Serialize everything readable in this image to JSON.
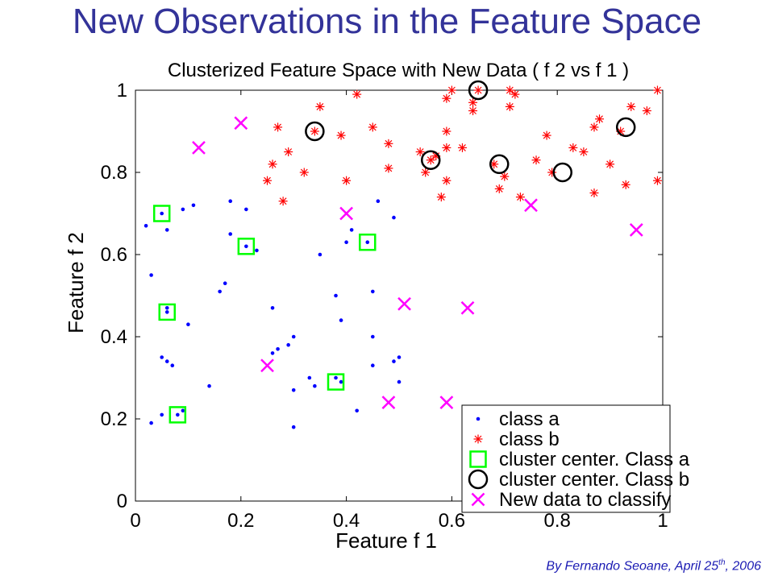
{
  "slide": {
    "title": "New Observations in the Feature Space",
    "credit_prefix": "By Fernando Seoane, April 25",
    "credit_sup": "th",
    "credit_suffix": ", 2006"
  },
  "chart_data": {
    "type": "scatter",
    "title": "Clusterized Feature Space with New Data ( f 2 vs f 1 )",
    "xlabel": "Feature f 1",
    "ylabel": "Feature f 2",
    "xlim": [
      0,
      1
    ],
    "ylim": [
      0,
      1
    ],
    "xticks": [
      "0",
      "0.2",
      "0.4",
      "0.6",
      "0.8",
      "1"
    ],
    "yticks": [
      "0",
      "0.2",
      "0.4",
      "0.6",
      "0.8",
      "1"
    ],
    "grid": false,
    "legend_position": "bottom-right",
    "series": [
      {
        "name": "class a",
        "marker": "dot",
        "color": "#0000ff",
        "points": [
          [
            0.02,
            0.67
          ],
          [
            0.03,
            0.19
          ],
          [
            0.03,
            0.55
          ],
          [
            0.05,
            0.7
          ],
          [
            0.06,
            0.66
          ],
          [
            0.05,
            0.35
          ],
          [
            0.06,
            0.34
          ],
          [
            0.06,
            0.46
          ],
          [
            0.06,
            0.47
          ],
          [
            0.07,
            0.33
          ],
          [
            0.05,
            0.21
          ],
          [
            0.08,
            0.21
          ],
          [
            0.09,
            0.22
          ],
          [
            0.09,
            0.71
          ],
          [
            0.11,
            0.72
          ],
          [
            0.1,
            0.43
          ],
          [
            0.14,
            0.28
          ],
          [
            0.16,
            0.51
          ],
          [
            0.17,
            0.53
          ],
          [
            0.18,
            0.73
          ],
          [
            0.18,
            0.65
          ],
          [
            0.21,
            0.71
          ],
          [
            0.21,
            0.62
          ],
          [
            0.23,
            0.61
          ],
          [
            0.26,
            0.47
          ],
          [
            0.26,
            0.36
          ],
          [
            0.27,
            0.37
          ],
          [
            0.29,
            0.38
          ],
          [
            0.3,
            0.4
          ],
          [
            0.3,
            0.27
          ],
          [
            0.3,
            0.18
          ],
          [
            0.33,
            0.3
          ],
          [
            0.34,
            0.28
          ],
          [
            0.35,
            0.6
          ],
          [
            0.38,
            0.5
          ],
          [
            0.38,
            0.3
          ],
          [
            0.39,
            0.44
          ],
          [
            0.39,
            0.29
          ],
          [
            0.4,
            0.63
          ],
          [
            0.41,
            0.66
          ],
          [
            0.42,
            0.22
          ],
          [
            0.44,
            0.63
          ],
          [
            0.45,
            0.51
          ],
          [
            0.45,
            0.4
          ],
          [
            0.45,
            0.33
          ],
          [
            0.46,
            0.73
          ],
          [
            0.49,
            0.69
          ],
          [
            0.49,
            0.34
          ],
          [
            0.5,
            0.35
          ],
          [
            0.5,
            0.29
          ]
        ]
      },
      {
        "name": "class b",
        "marker": "star",
        "color": "#ff0000",
        "points": [
          [
            0.25,
            0.78
          ],
          [
            0.26,
            0.82
          ],
          [
            0.27,
            0.91
          ],
          [
            0.28,
            0.73
          ],
          [
            0.29,
            0.85
          ],
          [
            0.32,
            0.8
          ],
          [
            0.34,
            0.9
          ],
          [
            0.35,
            0.96
          ],
          [
            0.39,
            0.89
          ],
          [
            0.4,
            0.78
          ],
          [
            0.42,
            0.99
          ],
          [
            0.45,
            0.91
          ],
          [
            0.48,
            0.87
          ],
          [
            0.48,
            0.81
          ],
          [
            0.54,
            0.85
          ],
          [
            0.55,
            0.8
          ],
          [
            0.56,
            0.83
          ],
          [
            0.57,
            0.84
          ],
          [
            0.58,
            0.74
          ],
          [
            0.59,
            0.86
          ],
          [
            0.59,
            0.9
          ],
          [
            0.59,
            0.78
          ],
          [
            0.59,
            0.98
          ],
          [
            0.6,
            1.0
          ],
          [
            0.62,
            0.86
          ],
          [
            0.64,
            0.95
          ],
          [
            0.64,
            0.97
          ],
          [
            0.65,
            1.0
          ],
          [
            0.68,
            0.82
          ],
          [
            0.69,
            0.76
          ],
          [
            0.7,
            0.79
          ],
          [
            0.71,
            1.0
          ],
          [
            0.71,
            0.96
          ],
          [
            0.72,
            0.99
          ],
          [
            0.73,
            0.74
          ],
          [
            0.76,
            0.83
          ],
          [
            0.78,
            0.89
          ],
          [
            0.79,
            0.8
          ],
          [
            0.83,
            0.86
          ],
          [
            0.85,
            0.85
          ],
          [
            0.87,
            0.91
          ],
          [
            0.87,
            0.75
          ],
          [
            0.88,
            0.93
          ],
          [
            0.9,
            0.82
          ],
          [
            0.92,
            0.9
          ],
          [
            0.93,
            0.77
          ],
          [
            0.94,
            0.96
          ],
          [
            0.97,
            0.95
          ],
          [
            0.99,
            1.0
          ],
          [
            0.99,
            0.78
          ]
        ]
      },
      {
        "name": "cluster center. Class a",
        "marker": "square",
        "color": "#00ff00",
        "points": [
          [
            0.05,
            0.7
          ],
          [
            0.06,
            0.46
          ],
          [
            0.08,
            0.21
          ],
          [
            0.21,
            0.62
          ],
          [
            0.38,
            0.29
          ],
          [
            0.44,
            0.63
          ]
        ]
      },
      {
        "name": "cluster center. Class b",
        "marker": "circle",
        "color": "#000000",
        "points": [
          [
            0.34,
            0.9
          ],
          [
            0.56,
            0.83
          ],
          [
            0.65,
            1.0
          ],
          [
            0.69,
            0.82
          ],
          [
            0.81,
            0.8
          ],
          [
            0.93,
            0.91
          ]
        ]
      },
      {
        "name": "New data to classify",
        "marker": "x",
        "color": "#ff00ff",
        "points": [
          [
            0.12,
            0.86
          ],
          [
            0.2,
            0.92
          ],
          [
            0.25,
            0.33
          ],
          [
            0.4,
            0.7
          ],
          [
            0.48,
            0.24
          ],
          [
            0.51,
            0.48
          ],
          [
            0.59,
            0.24
          ],
          [
            0.63,
            0.47
          ],
          [
            0.75,
            0.72
          ],
          [
            0.95,
            0.66
          ]
        ]
      }
    ]
  }
}
